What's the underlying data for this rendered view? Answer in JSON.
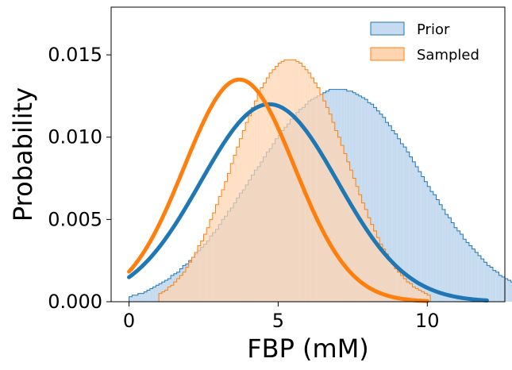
{
  "chart_data": {
    "type": "histogram",
    "xlabel": "FBP (mM)",
    "ylabel": "Probability",
    "xlim": [
      -0.6,
      12.6
    ],
    "ylim": [
      0,
      0.0179
    ],
    "x_ticks": [
      0,
      5,
      10
    ],
    "x_tick_labels": [
      "0",
      "5",
      "10"
    ],
    "y_ticks": [
      0,
      0.005,
      0.01,
      0.015
    ],
    "y_tick_labels": [
      "0.000",
      "0.005",
      "0.010",
      "0.015"
    ],
    "grid": false,
    "legend": "top-right",
    "bin_width": 0.1,
    "series": [
      {
        "name": "Prior",
        "color": "#1f77b4",
        "fill": "#c6dbef",
        "bin_start": 0.0,
        "values": [
          0.0003,
          0.0004,
          0.0004,
          0.0005,
          0.0005,
          0.0006,
          0.0007,
          0.0008,
          0.0009,
          0.001,
          0.0011,
          0.0012,
          0.0013,
          0.0014,
          0.0016,
          0.0017,
          0.0018,
          0.002,
          0.0022,
          0.0023,
          0.0025,
          0.0027,
          0.0029,
          0.0031,
          0.0033,
          0.0035,
          0.0037,
          0.004,
          0.0042,
          0.0044,
          0.0047,
          0.005,
          0.0052,
          0.0055,
          0.0057,
          0.006,
          0.0063,
          0.0066,
          0.0068,
          0.0071,
          0.0074,
          0.0077,
          0.008,
          0.0082,
          0.0085,
          0.0088,
          0.0091,
          0.0093,
          0.0096,
          0.0099,
          0.0101,
          0.0104,
          0.0106,
          0.0108,
          0.0111,
          0.0113,
          0.0115,
          0.0117,
          0.0118,
          0.012,
          0.0122,
          0.0123,
          0.0124,
          0.0125,
          0.0126,
          0.0127,
          0.0128,
          0.0129,
          0.0129,
          0.0129,
          0.0129,
          0.0129,
          0.0129,
          0.0128,
          0.0128,
          0.0127,
          0.0126,
          0.0125,
          0.0124,
          0.0123,
          0.0121,
          0.012,
          0.0118,
          0.0116,
          0.0114,
          0.0112,
          0.0109,
          0.0107,
          0.0104,
          0.0102,
          0.0099,
          0.0096,
          0.0094,
          0.0091,
          0.0088,
          0.0085,
          0.0082,
          0.0079,
          0.0076,
          0.0073,
          0.007,
          0.0067,
          0.0065,
          0.0062,
          0.0059,
          0.0056,
          0.0053,
          0.0051,
          0.0048,
          0.0045,
          0.0043,
          0.0041,
          0.0038,
          0.0036,
          0.0034,
          0.0032,
          0.003,
          0.0028,
          0.0026,
          0.0024,
          0.0022,
          0.0021,
          0.0019,
          0.0018,
          0.0016,
          0.0015,
          0.0014,
          0.0013,
          0.0012,
          0.0011,
          0.001,
          0.0009,
          0.0008,
          0.0007,
          0.0006,
          0.0006,
          0.0005,
          0.0004,
          0.0004,
          0.0003,
          0.0003,
          0.0003,
          0.0002,
          0.0002,
          0.0002,
          0.0001,
          0.0001
        ]
      },
      {
        "name": "Sampled",
        "color": "#ff7f0e",
        "fill": "#ffd5b1",
        "bin_start": 1.0,
        "values": [
          0.0005,
          0.0006,
          0.0007,
          0.0009,
          0.001,
          0.0012,
          0.0014,
          0.0016,
          0.0018,
          0.0021,
          0.0024,
          0.0027,
          0.003,
          0.0034,
          0.0037,
          0.0041,
          0.0045,
          0.005,
          0.0054,
          0.0059,
          0.0064,
          0.0068,
          0.0073,
          0.0078,
          0.0084,
          0.0089,
          0.0094,
          0.0099,
          0.0104,
          0.0109,
          0.0113,
          0.0118,
          0.0122,
          0.0126,
          0.013,
          0.0133,
          0.0136,
          0.0139,
          0.0141,
          0.0143,
          0.0145,
          0.0146,
          0.0147,
          0.0147,
          0.0147,
          0.0147,
          0.0146,
          0.0145,
          0.0143,
          0.0141,
          0.0139,
          0.0136,
          0.0133,
          0.013,
          0.0126,
          0.0122,
          0.0118,
          0.0114,
          0.0109,
          0.0104,
          0.01,
          0.0095,
          0.009,
          0.0085,
          0.008,
          0.0075,
          0.007,
          0.0065,
          0.006,
          0.0056,
          0.0051,
          0.0047,
          0.0043,
          0.0039,
          0.0035,
          0.0032,
          0.0029,
          0.0026,
          0.0023,
          0.002,
          0.0018,
          0.0016,
          0.0014,
          0.0012,
          0.0011,
          0.0009,
          0.0008,
          0.0007,
          0.0006,
          0.0005,
          0.0004
        ]
      }
    ],
    "fits": [
      {
        "name": "Prior fit",
        "color": "#1f77b4",
        "mean": 4.7,
        "peak": 0.012,
        "sigma": 2.3,
        "x_range": [
          0,
          12
        ]
      },
      {
        "name": "Sampled fit",
        "color": "#ff7f0e",
        "mean": 3.7,
        "peak": 0.0135,
        "sigma": 1.85,
        "x_range": [
          0,
          10
        ]
      }
    ]
  }
}
